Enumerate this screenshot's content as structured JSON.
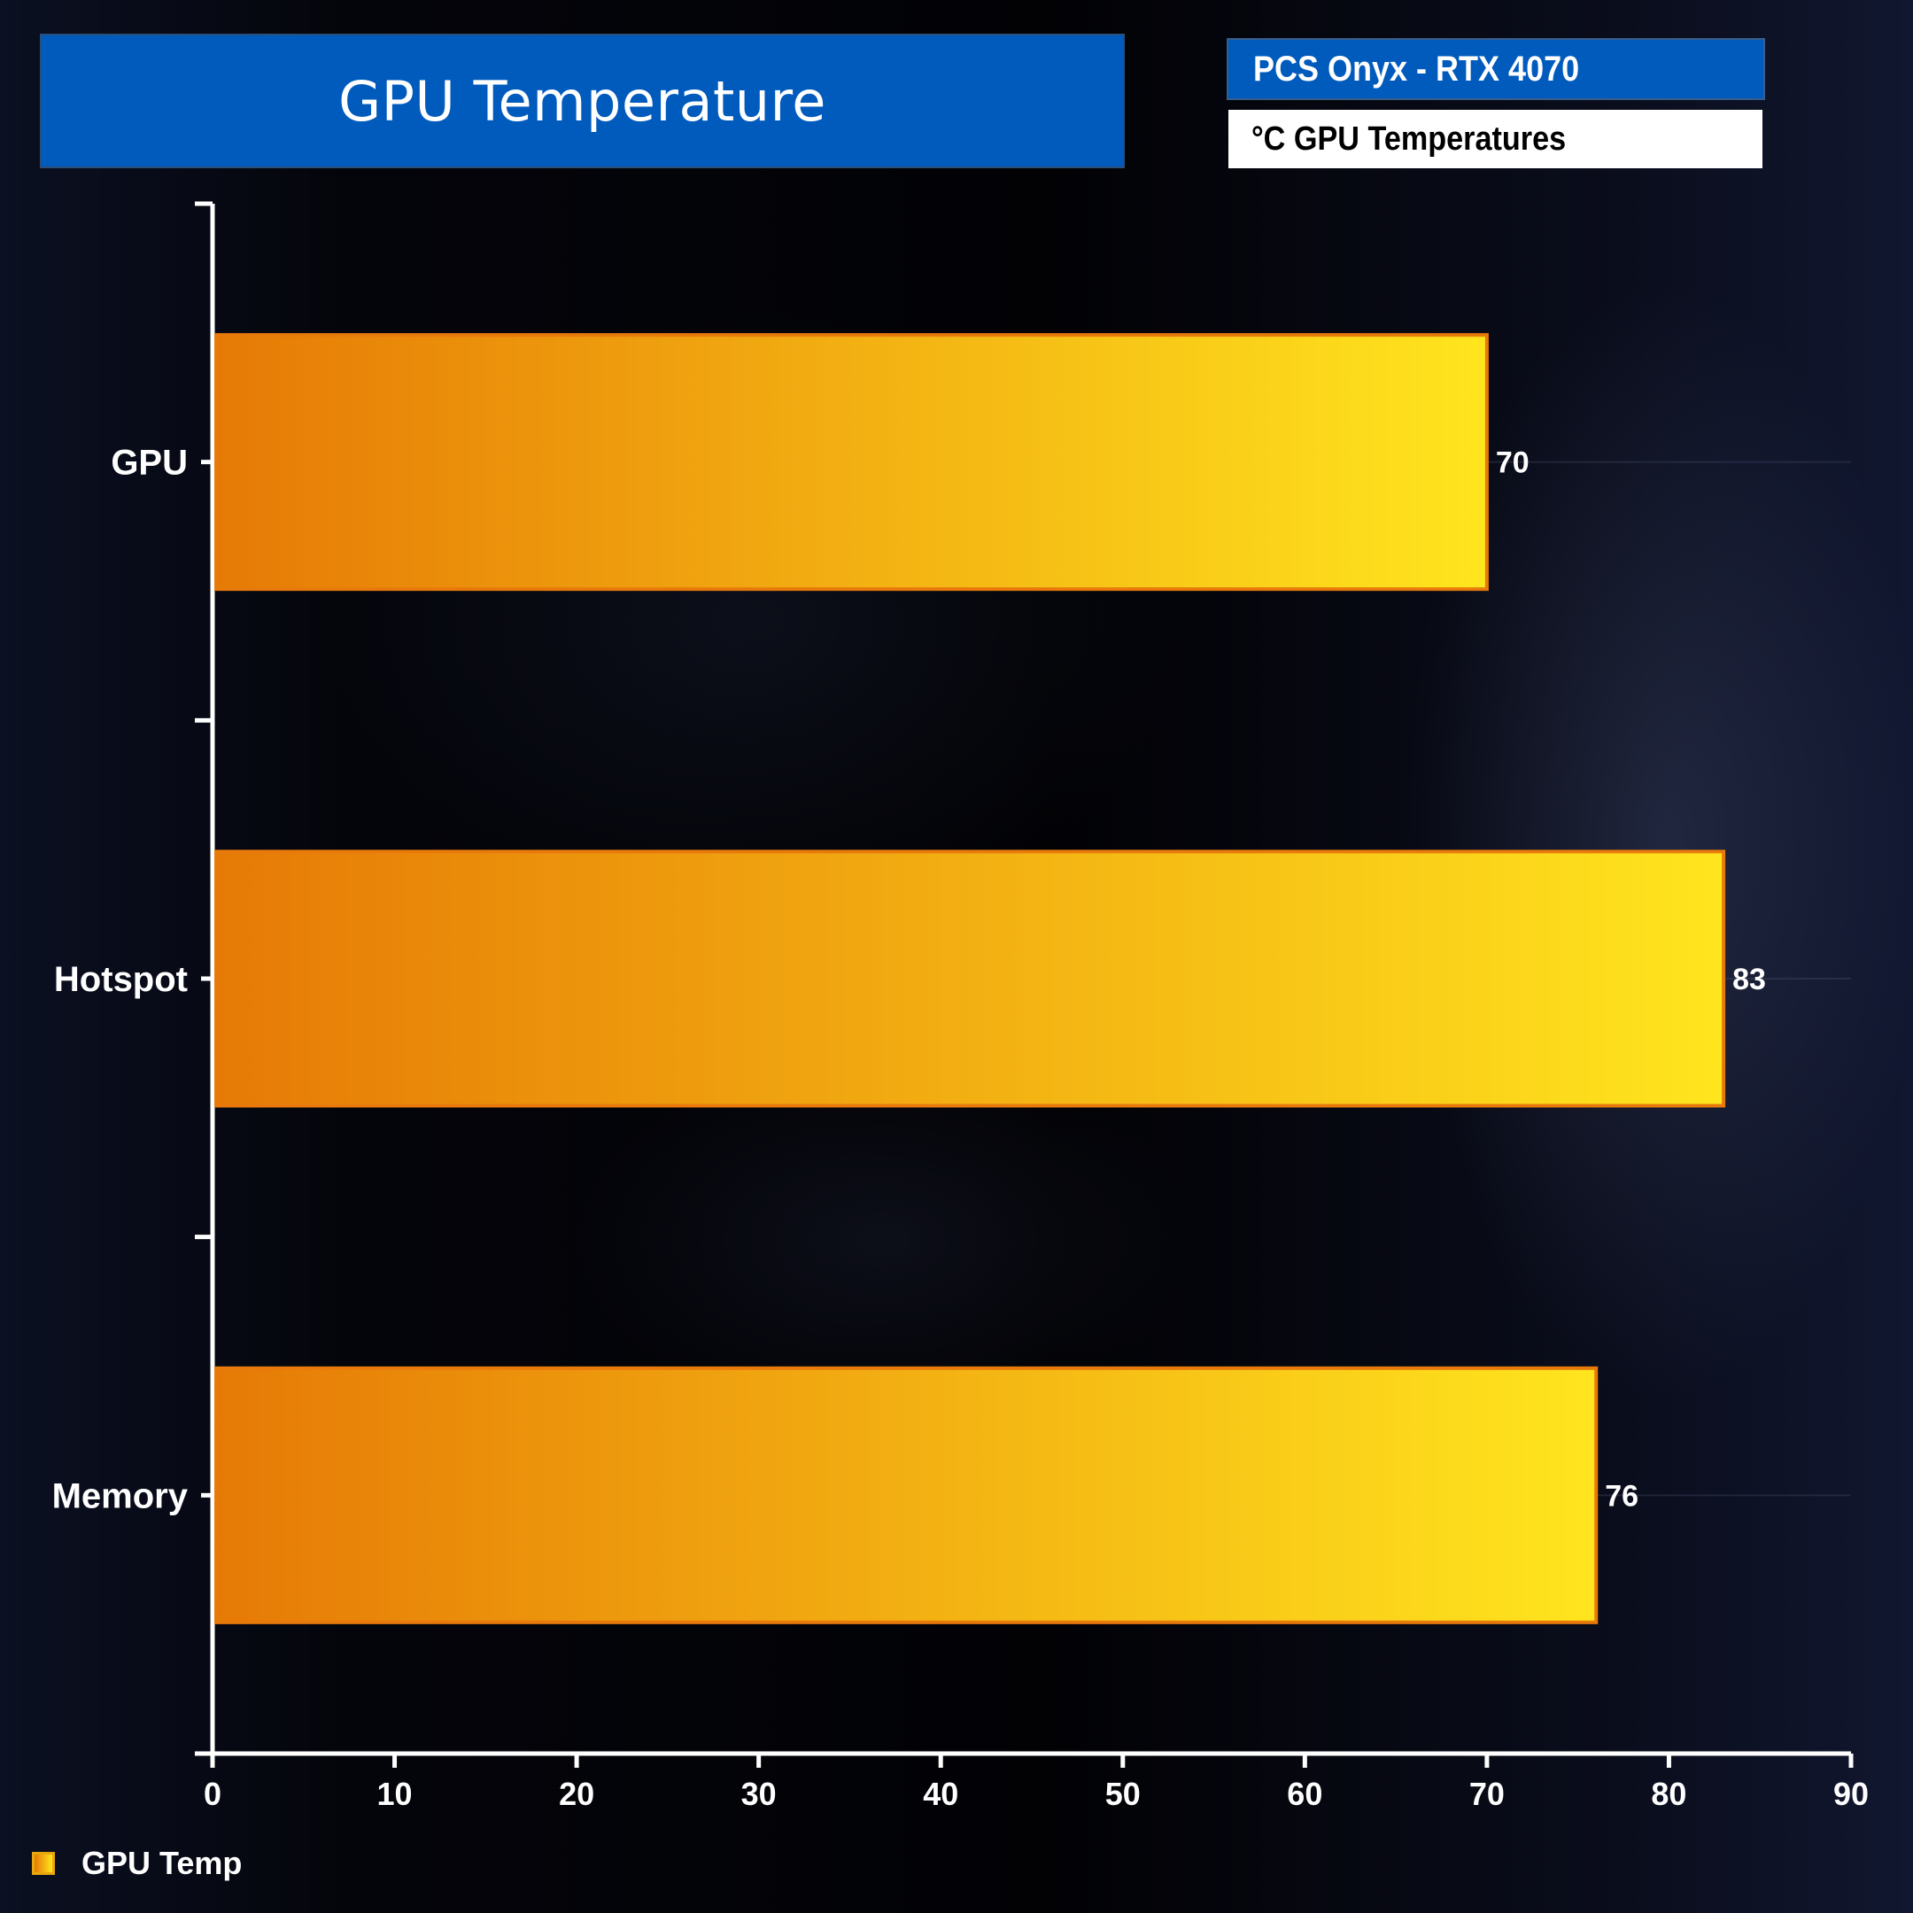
{
  "header": {
    "title": "GPU Temperature",
    "product": "PCS Onyx - RTX 4070",
    "metric": "°C GPU Temperatures"
  },
  "chart_data": {
    "type": "bar",
    "orientation": "horizontal",
    "categories": [
      "GPU",
      "Hotspot",
      "Memory"
    ],
    "series": [
      {
        "name": "GPU Temp",
        "values": [
          70,
          83,
          76
        ]
      }
    ],
    "xlim": [
      0,
      90
    ],
    "xticks": [
      0,
      10,
      20,
      30,
      40,
      50,
      60,
      70,
      80,
      90
    ],
    "data_labels": [
      "70",
      "83",
      "76"
    ],
    "grid": false,
    "legend": "bottom-left",
    "colors": {
      "bar_start": "#e67a06",
      "bar_end": "#ffe51e",
      "bar_border": "#e87a0c",
      "axis": "#ffffff"
    }
  },
  "legend": {
    "label": "GPU Temp"
  }
}
